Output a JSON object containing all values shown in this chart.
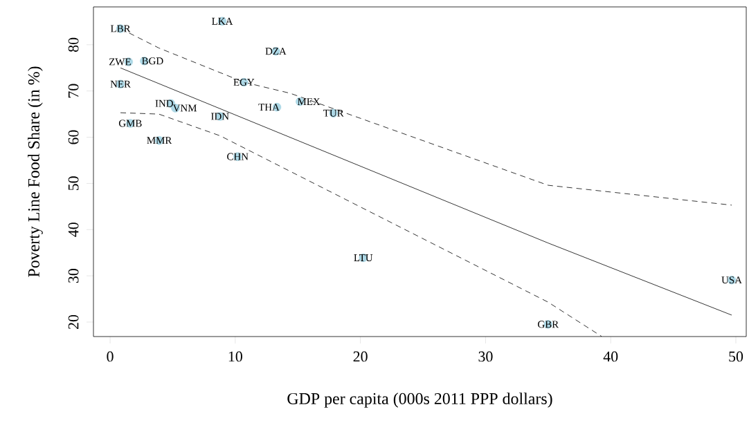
{
  "chart_data": {
    "type": "scatter",
    "xlabel": "GDP per capita (000s 2011 PPP dollars)",
    "ylabel": "Poverty Line Food Share (in %)",
    "xlim": [
      -1.33,
      50.83
    ],
    "ylim": [
      16.86,
      88.2
    ],
    "xticks": [
      0,
      10,
      20,
      30,
      40,
      50
    ],
    "yticks": [
      20,
      30,
      40,
      50,
      60,
      70,
      80
    ],
    "grid": false,
    "series": [
      {
        "color": "#add8e6",
        "marker": "circle",
        "x": [
          0.83,
          1.48,
          2.73,
          0.83,
          4.85,
          5.22,
          1.62,
          3.93,
          8.78,
          10.19,
          8.96,
          13.24,
          10.69,
          13.33,
          15.17,
          17.85,
          20.23,
          49.67,
          35.0
        ],
        "values": [
          83.5,
          76.3,
          76.5,
          71.5,
          67.3,
          66.3,
          63.0,
          59.3,
          64.5,
          55.8,
          85.1,
          78.6,
          71.9,
          66.5,
          67.7,
          65.2,
          33.9,
          29.1,
          19.5
        ]
      },
      {
        "type": "line",
        "color": "#000000",
        "line_style": "solid",
        "x": [
          0.83,
          35.0,
          49.67
        ],
        "values": [
          75.0,
          37.1,
          21.5
        ]
      },
      {
        "type": "line",
        "color": "#000000",
        "line_style": "dashed",
        "x": [
          0.83,
          3.9,
          10.7,
          14.4,
          35.0,
          49.67
        ],
        "values": [
          83.5,
          79.3,
          71.9,
          69.5,
          49.6,
          45.3
        ]
      },
      {
        "type": "line",
        "color": "#000000",
        "line_style": "dashed",
        "x": [
          0.83,
          3.9,
          8.8,
          14.4,
          35.0,
          39.27
        ],
        "values": [
          65.3,
          65.0,
          60.3,
          52.6,
          24.3,
          16.9
        ]
      }
    ],
    "annotations": [
      {
        "text": "LBR",
        "x": 0.83,
        "y": 83.5
      },
      {
        "text": "ZWE",
        "x": 1.48,
        "y": 76.3
      },
      {
        "text": "BGD",
        "x": 2.73,
        "y": 76.5
      },
      {
        "text": "NER",
        "x": 0.83,
        "y": 71.5
      },
      {
        "text": "IND",
        "x": 4.85,
        "y": 67.3
      },
      {
        "text": "VNM",
        "x": 5.22,
        "y": 66.3
      },
      {
        "text": "GMB",
        "x": 1.62,
        "y": 63.0
      },
      {
        "text": "MMR",
        "x": 3.93,
        "y": 59.3
      },
      {
        "text": "IDN",
        "x": 8.78,
        "y": 64.5
      },
      {
        "text": "CHN",
        "x": 10.19,
        "y": 55.8
      },
      {
        "text": "LKA",
        "x": 8.96,
        "y": 85.1
      },
      {
        "text": "DZA",
        "x": 13.24,
        "y": 78.6
      },
      {
        "text": "EGY",
        "x": 10.69,
        "y": 71.9
      },
      {
        "text": "THA",
        "x": 13.33,
        "y": 66.5
      },
      {
        "text": "MEX",
        "x": 15.17,
        "y": 67.7
      },
      {
        "text": "TUR",
        "x": 17.85,
        "y": 65.2
      },
      {
        "text": "LTU",
        "x": 20.23,
        "y": 33.9
      },
      {
        "text": "USA",
        "x": 49.67,
        "y": 29.1
      },
      {
        "text": "GBR",
        "x": 35.0,
        "y": 19.5
      }
    ]
  }
}
